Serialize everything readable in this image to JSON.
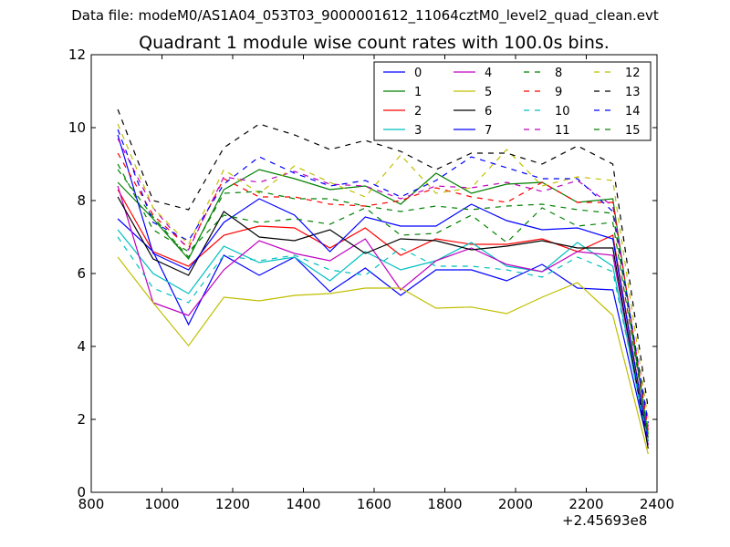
{
  "figure": {
    "suptitle": "Data file: modeM0/AS1A04_053T03_9000001612_11064cztM0_level2_quad_clean.evt",
    "x_offset_label": "+2.45693e8"
  },
  "chart_data": {
    "type": "line",
    "title": "Quadrant 1 module wise count rates with 100.0s bins.",
    "xlabel": "",
    "ylabel": "",
    "xlim": [
      800,
      2400
    ],
    "ylim": [
      0,
      12
    ],
    "xticks": [
      800,
      1000,
      1200,
      1400,
      1600,
      1800,
      2000,
      2200,
      2400
    ],
    "yticks": [
      0,
      2,
      4,
      6,
      8,
      10,
      12
    ],
    "grid": false,
    "legend_position": "upper-right",
    "legend_columns": 4,
    "x": [
      875,
      975,
      1075,
      1175,
      1275,
      1375,
      1475,
      1575,
      1675,
      1775,
      1875,
      1975,
      2075,
      2175,
      2275,
      2375
    ],
    "series": [
      {
        "name": "0",
        "color": "#0000ff",
        "dash": "solid",
        "values": [
          7.5,
          6.6,
          4.6,
          6.5,
          5.95,
          6.45,
          5.5,
          6.15,
          5.4,
          6.1,
          6.1,
          5.8,
          6.25,
          5.6,
          5.55,
          1.3
        ]
      },
      {
        "name": "1",
        "color": "#008000",
        "dash": "solid",
        "values": [
          8.5,
          7.5,
          6.4,
          8.3,
          8.85,
          8.6,
          8.3,
          8.4,
          7.9,
          8.75,
          8.2,
          8.45,
          8.5,
          7.95,
          8.05,
          1.5
        ]
      },
      {
        "name": "2",
        "color": "#ff0000",
        "dash": "solid",
        "values": [
          8.3,
          6.6,
          6.2,
          7.05,
          7.3,
          7.25,
          6.7,
          7.25,
          6.5,
          6.95,
          6.8,
          6.8,
          6.95,
          6.6,
          7.05,
          1.4
        ]
      },
      {
        "name": "3",
        "color": "#00bfbf",
        "dash": "solid",
        "values": [
          7.2,
          6.0,
          5.45,
          6.75,
          6.3,
          6.45,
          5.8,
          6.6,
          6.1,
          6.35,
          6.85,
          6.2,
          6.05,
          6.85,
          6.2,
          1.3
        ]
      },
      {
        "name": "4",
        "color": "#bf00bf",
        "dash": "solid",
        "values": [
          8.4,
          5.2,
          4.85,
          6.1,
          6.9,
          6.55,
          6.35,
          6.95,
          5.55,
          6.35,
          6.7,
          6.25,
          6.05,
          6.6,
          6.5,
          1.3
        ]
      },
      {
        "name": "5",
        "color": "#bfbf00",
        "dash": "solid",
        "values": [
          6.45,
          5.2,
          4.02,
          5.35,
          5.25,
          5.4,
          5.45,
          5.6,
          5.6,
          5.05,
          5.08,
          4.9,
          5.35,
          5.75,
          4.85,
          1.05
        ]
      },
      {
        "name": "6",
        "color": "#000000",
        "dash": "solid",
        "values": [
          8.1,
          6.4,
          5.95,
          7.7,
          7.0,
          6.9,
          7.2,
          6.55,
          6.95,
          6.9,
          6.65,
          6.75,
          6.9,
          6.7,
          6.7,
          1.2
        ]
      },
      {
        "name": "7",
        "color": "#0000ff",
        "dash": "solid",
        "values": [
          9.8,
          6.55,
          6.1,
          7.4,
          8.05,
          7.6,
          6.6,
          7.55,
          7.3,
          7.3,
          7.9,
          7.45,
          7.2,
          7.25,
          6.95,
          1.4
        ]
      },
      {
        "name": "8",
        "color": "#008000",
        "dash": "dashed",
        "values": [
          9.0,
          7.2,
          6.6,
          7.6,
          7.4,
          7.5,
          7.35,
          7.8,
          7.05,
          7.1,
          7.6,
          6.85,
          7.8,
          7.3,
          7.4,
          1.6
        ]
      },
      {
        "name": "9",
        "color": "#ff0000",
        "dash": "dashed",
        "values": [
          9.3,
          7.6,
          6.7,
          8.6,
          8.1,
          8.1,
          7.9,
          7.85,
          8.0,
          8.35,
          8.1,
          7.95,
          8.5,
          7.95,
          7.95,
          1.7
        ]
      },
      {
        "name": "10",
        "color": "#00bfbf",
        "dash": "dashed",
        "values": [
          7.0,
          5.6,
          5.2,
          6.5,
          6.35,
          6.5,
          6.1,
          5.95,
          6.7,
          6.2,
          6.2,
          6.1,
          5.9,
          6.45,
          6.05,
          1.4
        ]
      },
      {
        "name": "11",
        "color": "#bf00bf",
        "dash": "dashed",
        "values": [
          9.7,
          7.8,
          6.65,
          8.65,
          8.5,
          8.8,
          8.45,
          8.4,
          8.05,
          8.4,
          8.35,
          8.5,
          8.25,
          8.55,
          7.85,
          1.8
        ]
      },
      {
        "name": "12",
        "color": "#bfbf00",
        "dash": "dashed",
        "values": [
          10.1,
          7.8,
          6.8,
          8.85,
          8.2,
          8.95,
          8.5,
          8.1,
          9.25,
          8.2,
          8.35,
          9.4,
          8.4,
          8.65,
          8.55,
          2.0
        ]
      },
      {
        "name": "13",
        "color": "#000000",
        "dash": "dashed",
        "values": [
          10.5,
          8.0,
          7.75,
          9.45,
          10.1,
          9.8,
          9.4,
          9.65,
          9.35,
          8.85,
          9.3,
          9.3,
          9.0,
          9.5,
          9.0,
          2.3
        ]
      },
      {
        "name": "14",
        "color": "#0000ff",
        "dash": "dashed",
        "values": [
          9.95,
          7.4,
          6.9,
          8.45,
          9.2,
          8.75,
          8.4,
          8.55,
          8.1,
          8.55,
          9.2,
          8.9,
          8.6,
          8.6,
          7.7,
          1.9
        ]
      },
      {
        "name": "15",
        "color": "#008000",
        "dash": "dashed",
        "values": [
          8.85,
          7.55,
          6.45,
          8.2,
          8.25,
          8.05,
          8.05,
          7.85,
          7.7,
          7.85,
          7.75,
          7.85,
          7.9,
          7.75,
          7.65,
          1.6
        ]
      }
    ]
  }
}
